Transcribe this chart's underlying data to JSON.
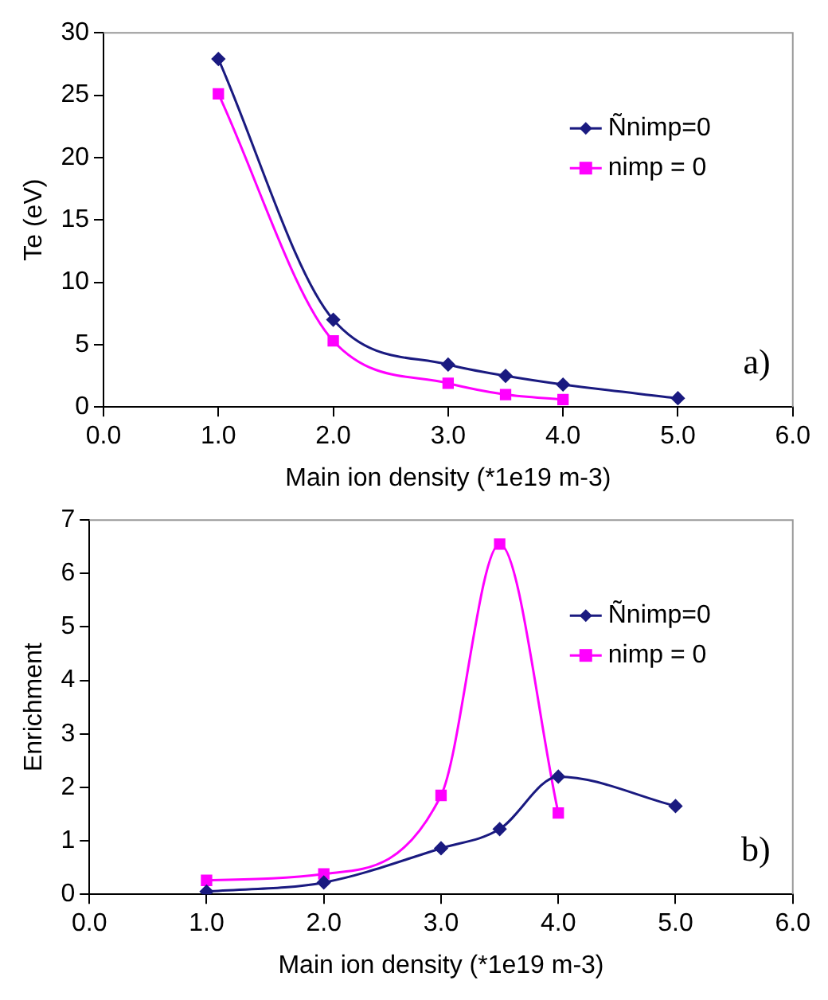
{
  "chart_data": [
    {
      "type": "line",
      "ylabel": "Te (eV)",
      "xlabel": "Main ion density (*1e19 m-3)",
      "annotations": [
        "a)"
      ],
      "xlim": [
        0,
        6
      ],
      "xticks": [
        {
          "value": 0,
          "label": "0.0"
        },
        {
          "value": 1,
          "label": "1.0"
        },
        {
          "value": 2,
          "label": "2.0"
        },
        {
          "value": 3,
          "label": "3.0"
        },
        {
          "value": 4,
          "label": "4.0"
        },
        {
          "value": 5,
          "label": "5.0"
        },
        {
          "value": 6,
          "label": "6.0"
        }
      ],
      "ylim": [
        0,
        30
      ],
      "yticks": [
        0,
        5,
        10,
        15,
        20,
        25,
        30
      ],
      "grid": false,
      "legend": "top right",
      "series": [
        {
          "name": "Ñnimp=0",
          "color": "#1a1a80",
          "marker": "diamond",
          "x": [
            1,
            2,
            3,
            3.5,
            4,
            5
          ],
          "values": [
            27.9,
            7.0,
            3.4,
            2.5,
            1.8,
            0.7
          ]
        },
        {
          "name": "nimp = 0",
          "color": "#ff00ff",
          "marker": "square",
          "x": [
            1,
            2,
            3,
            3.5,
            4
          ],
          "values": [
            25.1,
            5.3,
            1.9,
            1.0,
            0.6
          ]
        }
      ]
    },
    {
      "type": "line",
      "ylabel": "Enrichment",
      "xlabel": "Main ion density (*1e19 m-3)",
      "annotations": [
        "b)"
      ],
      "xlim": [
        0,
        6
      ],
      "xticks": [
        {
          "value": 0,
          "label": "0.0"
        },
        {
          "value": 1,
          "label": "1.0"
        },
        {
          "value": 2,
          "label": "2.0"
        },
        {
          "value": 3,
          "label": "3.0"
        },
        {
          "value": 4,
          "label": "4.0"
        },
        {
          "value": 5,
          "label": "5.0"
        },
        {
          "value": 6,
          "label": "6.0"
        }
      ],
      "ylim": [
        0,
        7
      ],
      "yticks": [
        0,
        1,
        2,
        3,
        4,
        5,
        6,
        7
      ],
      "grid": false,
      "legend": "top right",
      "series": [
        {
          "name": "Ñnimp=0",
          "color": "#1a1a80",
          "marker": "diamond",
          "x": [
            1,
            2,
            3,
            3.5,
            4,
            5
          ],
          "values": [
            0.05,
            0.22,
            0.86,
            1.22,
            2.2,
            1.65
          ]
        },
        {
          "name": "nimp = 0",
          "color": "#ff00ff",
          "marker": "square",
          "x": [
            1,
            2,
            3,
            3.5,
            4
          ],
          "values": [
            0.26,
            0.38,
            1.85,
            6.55,
            1.52
          ]
        }
      ]
    }
  ]
}
